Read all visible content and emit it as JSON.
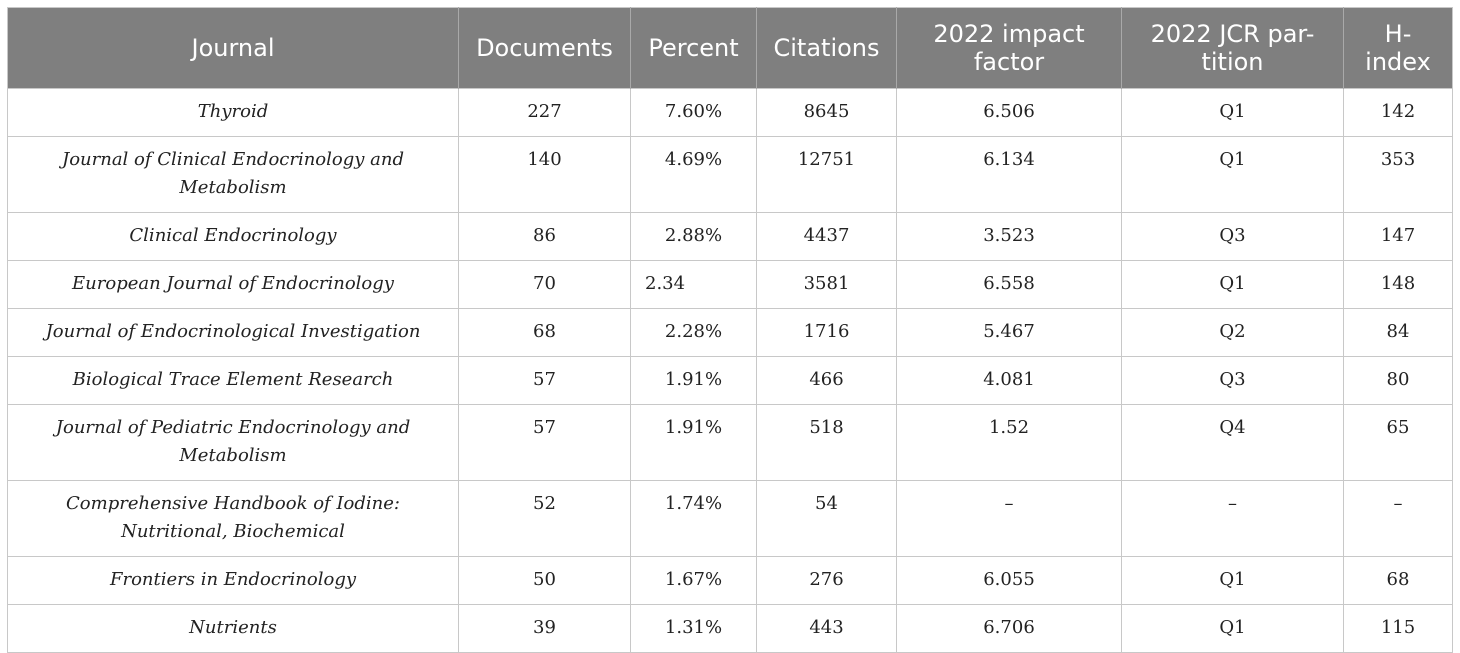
{
  "table": {
    "headers": [
      "Journal",
      "Documents",
      "Percent",
      "Citations",
      "2022 impact factor",
      "2022 JCR partition",
      "H-index"
    ],
    "header_lines": [
      [
        "Journal"
      ],
      [
        "Documents"
      ],
      [
        "Percent"
      ],
      [
        "Citations"
      ],
      [
        "2022 impact",
        "factor"
      ],
      [
        "2022 JCR par-",
        "tition"
      ],
      [
        "H-",
        "index"
      ]
    ],
    "rows": [
      {
        "journal": "Thyroid",
        "documents": "227",
        "percent": "7.60%",
        "citations": "8645",
        "impact_factor": "6.506",
        "jcr_partition": "Q1",
        "h_index": "142"
      },
      {
        "journal": "Journal of Clinical Endocrinology and Metabolism",
        "documents": "140",
        "percent": "4.69%",
        "citations": "12751",
        "impact_factor": "6.134",
        "jcr_partition": "Q1",
        "h_index": "353"
      },
      {
        "journal": "Clinical Endocrinology",
        "documents": "86",
        "percent": "2.88%",
        "citations": "4437",
        "impact_factor": "3.523",
        "jcr_partition": "Q3",
        "h_index": "147"
      },
      {
        "journal": "European Journal of Endocrinology",
        "documents": "70",
        "percent": "2.34",
        "citations": "3581",
        "impact_factor": "6.558",
        "jcr_partition": "Q1",
        "h_index": "148",
        "percent_align": "left"
      },
      {
        "journal": "Journal of Endocrinological Investigation",
        "documents": "68",
        "percent": "2.28%",
        "citations": "1716",
        "impact_factor": "5.467",
        "jcr_partition": "Q2",
        "h_index": "84"
      },
      {
        "journal": "Biological Trace Element Research",
        "documents": "57",
        "percent": "1.91%",
        "citations": "466",
        "impact_factor": "4.081",
        "jcr_partition": "Q3",
        "h_index": "80"
      },
      {
        "journal": "Journal of Pediatric Endocrinology and Metabolism",
        "documents": "57",
        "percent": "1.91%",
        "citations": "518",
        "impact_factor": "1.52",
        "jcr_partition": "Q4",
        "h_index": "65"
      },
      {
        "journal": "Comprehensive Handbook of Iodine: Nutritional, Biochemical",
        "documents": "52",
        "percent": "1.74%",
        "citations": "54",
        "impact_factor": "–",
        "jcr_partition": "–",
        "h_index": "–"
      },
      {
        "journal": "Frontiers in Endocrinology",
        "documents": "50",
        "percent": "1.67%",
        "citations": "276",
        "impact_factor": "6.055",
        "jcr_partition": "Q1",
        "h_index": "68"
      },
      {
        "journal": "Nutrients",
        "documents": "39",
        "percent": "1.31%",
        "citations": "443",
        "impact_factor": "6.706",
        "jcr_partition": "Q1",
        "h_index": "115"
      }
    ]
  },
  "colors": {
    "header_background": "#7f7f7f",
    "header_text": "#ffffff",
    "grid_line": "#c8c8c8"
  }
}
